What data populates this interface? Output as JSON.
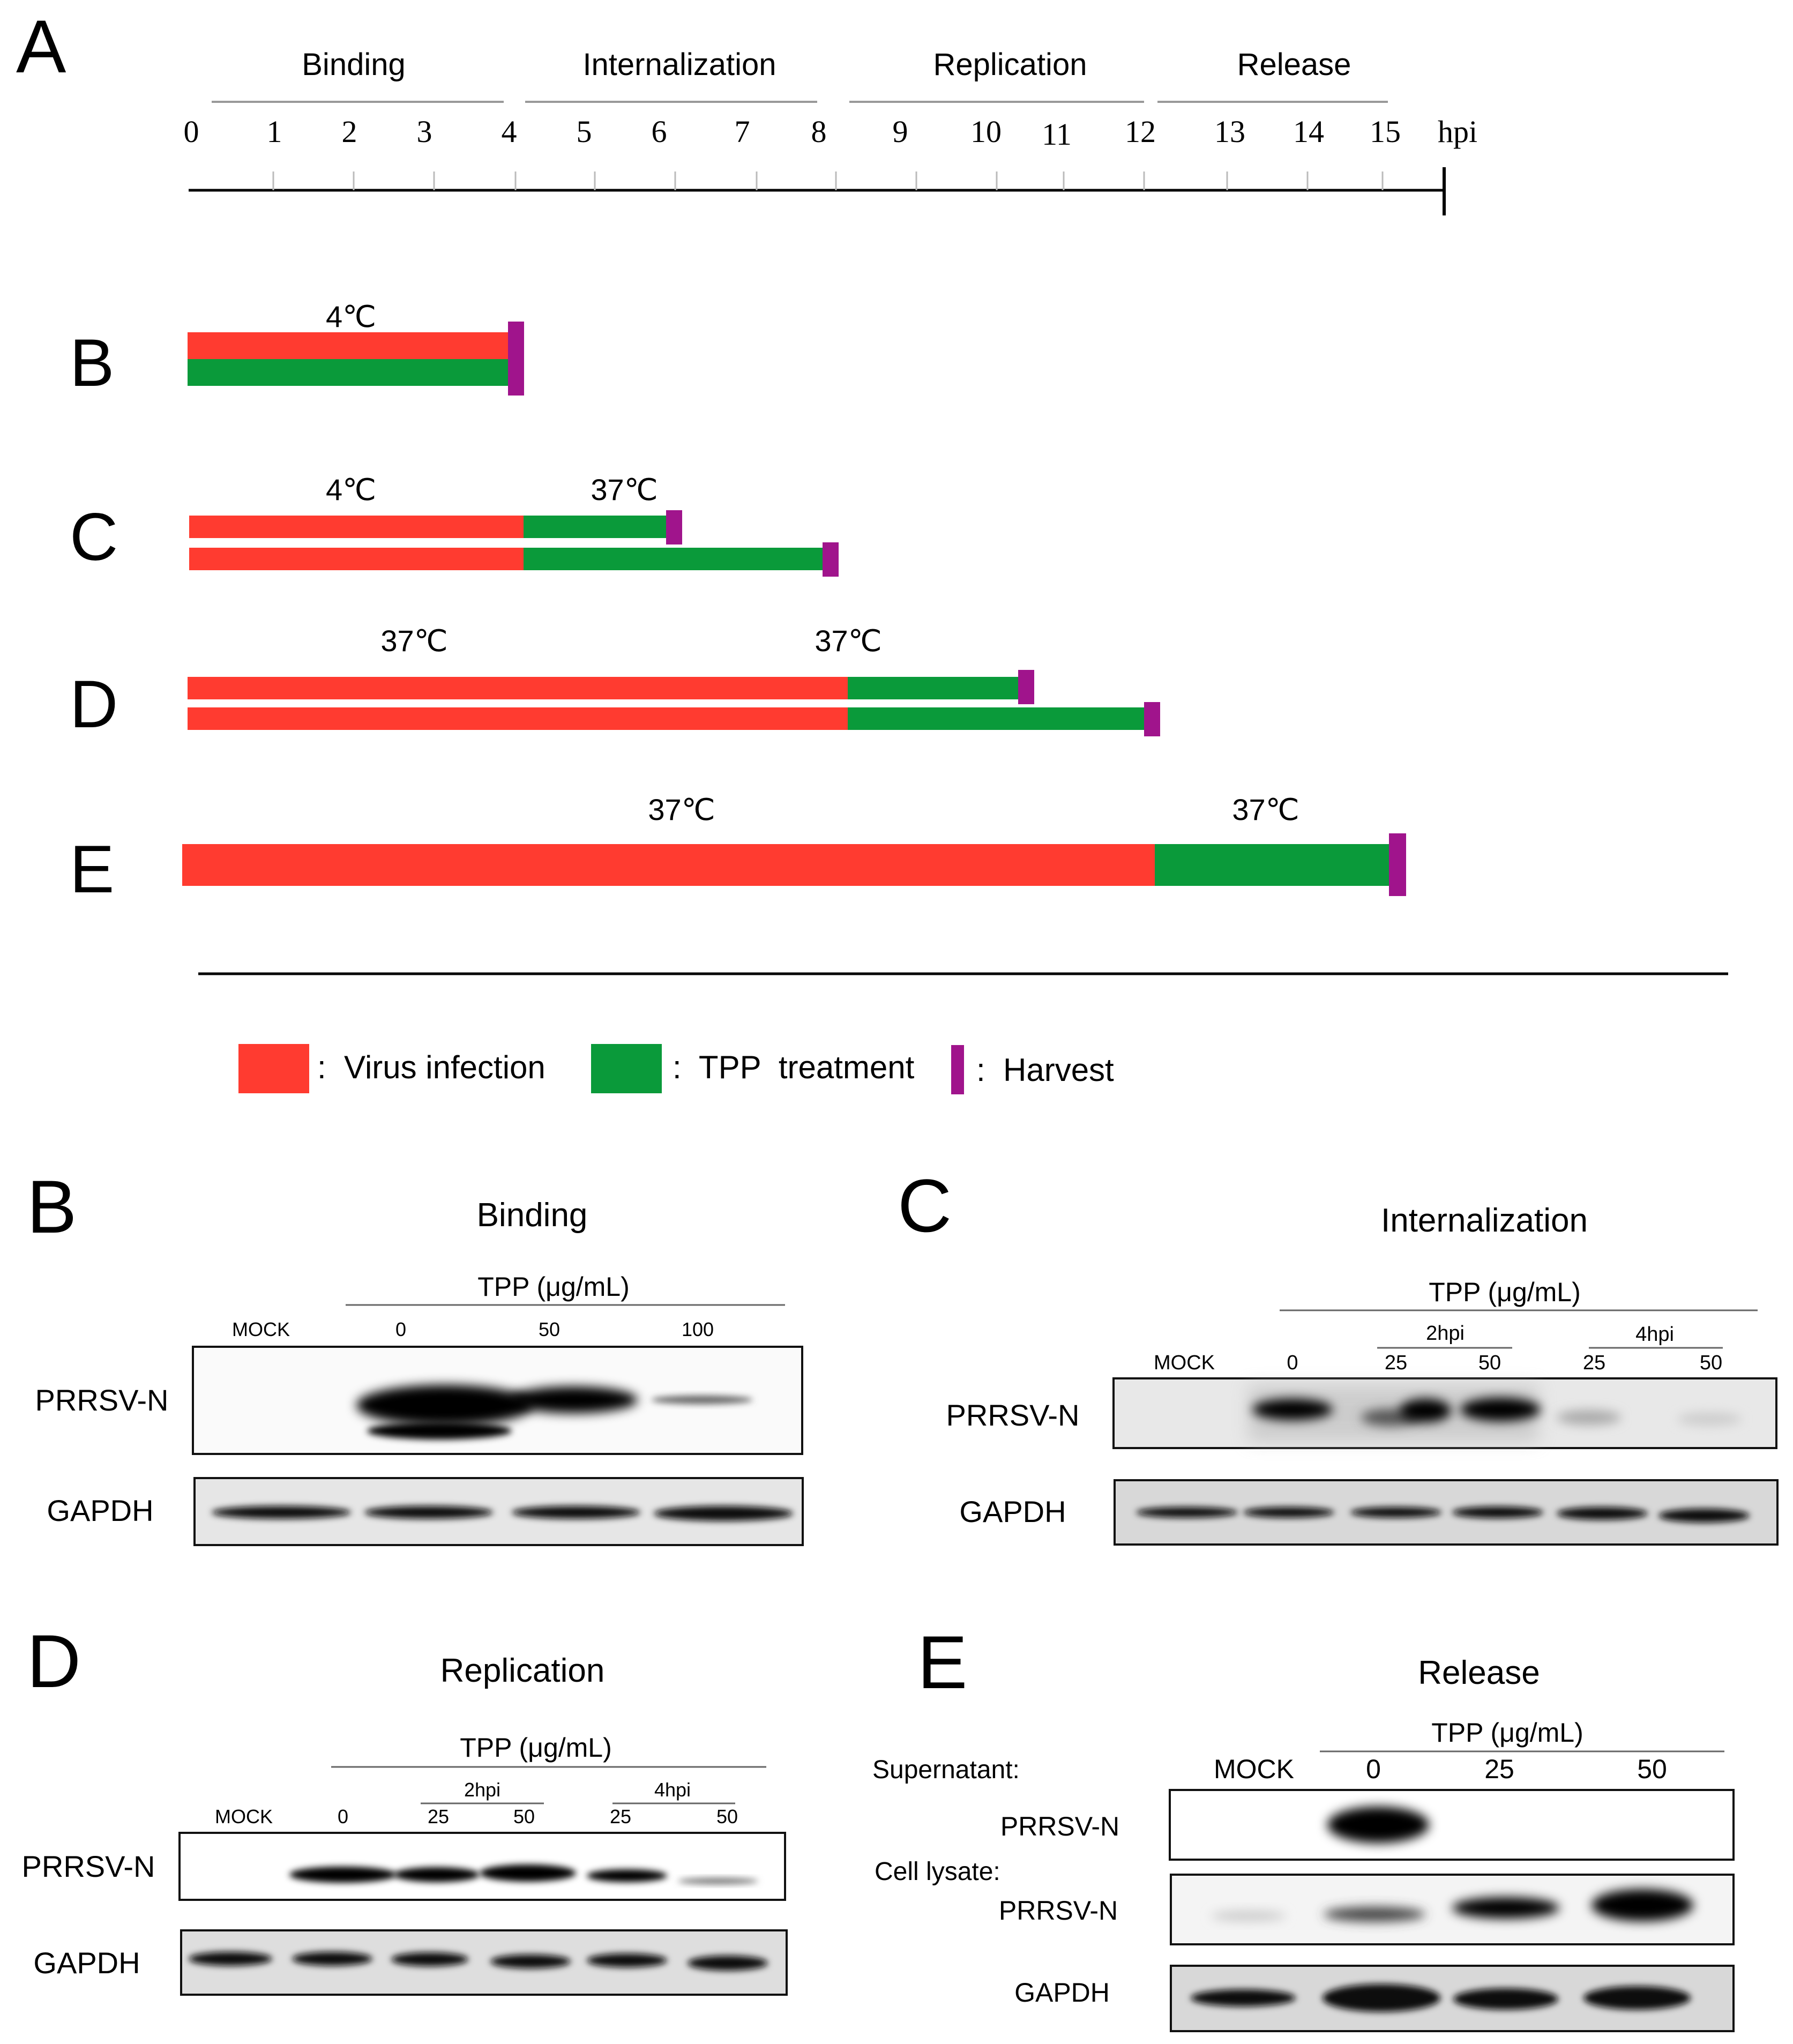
{
  "panel_a": {
    "letter": "A",
    "phases": [
      "Binding",
      "Internalization",
      "Replication",
      "Release"
    ],
    "axis_ticks": [
      "0",
      "1",
      "2",
      "3",
      "4",
      "5",
      "6",
      "7",
      "8",
      "9",
      "10",
      "11",
      "12",
      "13",
      "14",
      "15"
    ],
    "axis_unit": "hpi",
    "rows": [
      {
        "letter": "B",
        "temps": [
          "4℃"
        ]
      },
      {
        "letter": "C",
        "temps": [
          "4℃",
          "37℃"
        ]
      },
      {
        "letter": "D",
        "temps": [
          "37℃",
          "37℃"
        ]
      },
      {
        "letter": "E",
        "temps": [
          "37℃",
          "37℃"
        ]
      }
    ],
    "legend": {
      "virus": ":  Virus infection",
      "tpp": ":  TPP  treatment",
      "harvest": ":  Harvest"
    },
    "colors": {
      "virus": "#ff3b30",
      "tpp": "#0a9a3a",
      "harvest": "#a0148c"
    }
  },
  "blot_b": {
    "letter": "B",
    "title": "Binding",
    "group": "TPP (μg/mL)",
    "lanes": [
      "MOCK",
      "0",
      "50",
      "100"
    ],
    "rows": [
      "PRRSV-N",
      "GAPDH"
    ]
  },
  "blot_c": {
    "letter": "C",
    "title": "Internalization",
    "group": "TPP (μg/mL)",
    "sub": [
      "2hpi",
      "4hpi"
    ],
    "lanes": [
      "MOCK",
      "0",
      "25",
      "50",
      "25",
      "50"
    ],
    "rows": [
      "PRRSV-N",
      "GAPDH"
    ]
  },
  "blot_d": {
    "letter": "D",
    "title": "Replication",
    "group": "TPP (μg/mL)",
    "sub": [
      "2hpi",
      "4hpi"
    ],
    "lanes": [
      "MOCK",
      "0",
      "25",
      "50",
      "25",
      "50"
    ],
    "rows": [
      "PRRSV-N",
      "GAPDH"
    ]
  },
  "blot_e": {
    "letter": "E",
    "title": "Release",
    "group": "TPP (μg/mL)",
    "lanes": [
      "MOCK",
      "0",
      "25",
      "50"
    ],
    "supernatant": "Supernatant:",
    "lysate": "Cell lysate:",
    "rows": [
      "PRRSV-N",
      "PRRSV-N",
      "GAPDH"
    ]
  }
}
